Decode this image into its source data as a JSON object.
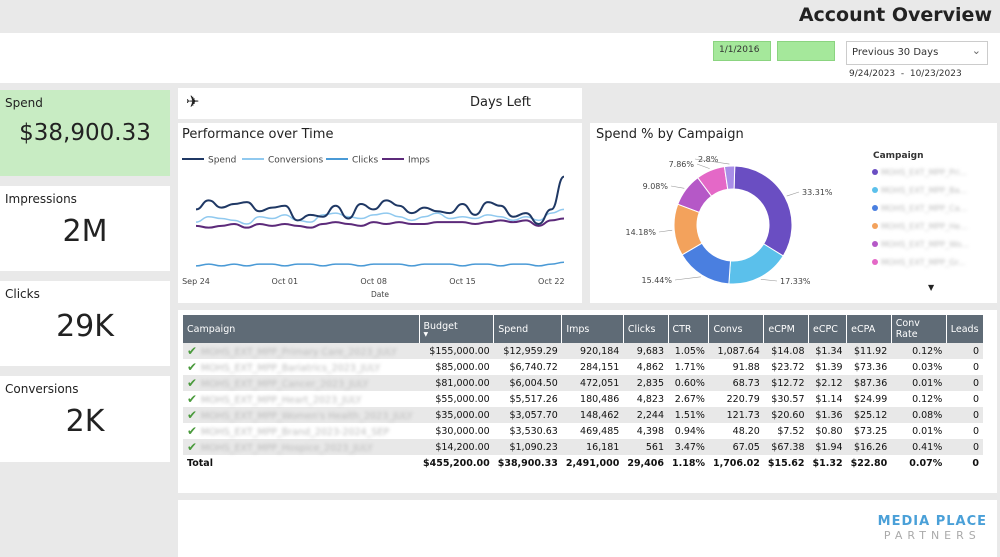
{
  "header": {
    "title": "Account Overview"
  },
  "filters": {
    "start_date": "1/1/2016",
    "end_date": "",
    "period": "Previous 30 Days",
    "range_text": "9/24/2023  -  10/23/2023"
  },
  "kpis": {
    "spend_label": "Spend",
    "spend_value": "$38,900.33",
    "impressions_label": "Impressions",
    "impressions_value": "2M",
    "clicks_label": "Clicks",
    "clicks_value": "29K",
    "conversions_label": "Conversions",
    "conversions_value": "2K"
  },
  "days_left": {
    "label": "Days Left",
    "icon": "airplane-icon"
  },
  "colors": {
    "spend": "#1f3864",
    "conversions": "#90c9ef",
    "clicks": "#4a9ad6",
    "imps": "#5c2a7a",
    "header_bg": "#5f6b76",
    "kpi_highlight": "#c8ecc3"
  },
  "chart_data": [
    {
      "type": "line",
      "title": "Performance over Time",
      "xlabel": "Date",
      "x_ticks": [
        "Sep 24",
        "Oct 01",
        "Oct 08",
        "Oct 15",
        "Oct 22"
      ],
      "series": [
        {
          "name": "Spend",
          "values": [
            1.6,
            2.1,
            1.7,
            1.9,
            2.0,
            1.5,
            1.7,
            1.8,
            1.0,
            1.3,
            1.2,
            1.8,
            1.1,
            1.9,
            1.6,
            2.1,
            1.8,
            1.4,
            1.7,
            1.5,
            1.4,
            1.9,
            1.3,
            2.0,
            1.8,
            1.2,
            1.4,
            0.8,
            1.6,
            3.4
          ]
        },
        {
          "name": "Conversions",
          "values": [
            0.9,
            1.2,
            1.1,
            1.0,
            0.8,
            1.2,
            1.1,
            1.3,
            1.0,
            0.9,
            1.3,
            1.4,
            1.2,
            1.1,
            1.3,
            1.4,
            1.2,
            1.0,
            1.2,
            1.4,
            1.1,
            1.2,
            1.1,
            1.3,
            1.2,
            1.0,
            1.2,
            1.0,
            1.4,
            1.6
          ]
        },
        {
          "name": "Clicks",
          "values": [
            -1.5,
            -1.4,
            -1.5,
            -1.4,
            -1.5,
            -1.4,
            -1.4,
            -1.5,
            -1.4,
            -1.4,
            -1.5,
            -1.4,
            -1.4,
            -1.5,
            -1.4,
            -1.4,
            -1.4,
            -1.5,
            -1.4,
            -1.4,
            -1.4,
            -1.5,
            -1.4,
            -1.4,
            -1.5,
            -1.4,
            -1.4,
            -1.5,
            -1.4,
            -1.3
          ]
        },
        {
          "name": "Imps",
          "values": [
            0.7,
            0.6,
            0.7,
            0.8,
            0.6,
            0.8,
            0.7,
            0.8,
            0.7,
            0.6,
            0.8,
            0.9,
            0.8,
            0.7,
            0.9,
            0.8,
            0.9,
            0.8,
            0.8,
            0.9,
            0.9,
            0.9,
            0.8,
            0.9,
            1.0,
            0.9,
            1.0,
            0.7,
            1.0,
            1.1
          ]
        }
      ]
    },
    {
      "type": "pie",
      "title": "Spend % by Campaign",
      "legend_title": "Campaign",
      "slices": [
        {
          "label": "33.31%",
          "value": 33.31,
          "color": "#6a4ec2"
        },
        {
          "label": "17.33%",
          "value": 17.33,
          "color": "#5bc0eb"
        },
        {
          "label": "15.44%",
          "value": 15.44,
          "color": "#4a7fe0"
        },
        {
          "label": "14.18%",
          "value": 14.18,
          "color": "#f3a25c"
        },
        {
          "label": "9.08%",
          "value": 9.08,
          "color": "#b558c7"
        },
        {
          "label": "7.86%",
          "value": 7.86,
          "color": "#e468c7"
        },
        {
          "label": "2.8%",
          "value": 2.8,
          "color": "#a98ee8"
        }
      ],
      "legend_entries": [
        "MOHS_EXT_MPP_Pri...",
        "MOHS_EXT_MPP_Ba...",
        "MOHS_EXT_MPP_Ca...",
        "MOHS_EXT_MPP_He...",
        "MOHS_EXT_MPP_Wo...",
        "MOHS_EXT_MPP_Gr..."
      ]
    }
  ],
  "table": {
    "columns": [
      "Campaign",
      "Budget",
      "Spend",
      "Imps",
      "Clicks",
      "CTR",
      "Convs",
      "eCPM",
      "eCPC",
      "eCPA",
      "Conv Rate",
      "Leads"
    ],
    "rows": [
      [
        "MOHS_EXT_MPP_Primary Care_2023_JULY",
        "$155,000.00",
        "$12,959.29",
        "920,184",
        "9,683",
        "1.05%",
        "1,087.64",
        "$14.08",
        "$1.34",
        "$11.92",
        "0.12%",
        "0"
      ],
      [
        "MOHS_EXT_MPP_Bariatrics_2023_JULY",
        "$85,000.00",
        "$6,740.72",
        "284,151",
        "4,862",
        "1.71%",
        "91.88",
        "$23.72",
        "$1.39",
        "$73.36",
        "0.03%",
        "0"
      ],
      [
        "MOHS_EXT_MPP_Cancer_2023_JULY",
        "$81,000.00",
        "$6,004.50",
        "472,051",
        "2,835",
        "0.60%",
        "68.73",
        "$12.72",
        "$2.12",
        "$87.36",
        "0.01%",
        "0"
      ],
      [
        "MOHS_EXT_MPP_Heart_2023_JULY",
        "$55,000.00",
        "$5,517.26",
        "180,486",
        "4,823",
        "2.67%",
        "220.79",
        "$30.57",
        "$1.14",
        "$24.99",
        "0.12%",
        "0"
      ],
      [
        "MOHS_EXT_MPP_Women's Health_2023_JULY",
        "$35,000.00",
        "$3,057.70",
        "148,462",
        "2,244",
        "1.51%",
        "121.73",
        "$20.60",
        "$1.36",
        "$25.12",
        "0.08%",
        "0"
      ],
      [
        "MOHS_EXT_MPP_Brand_2023-2024_SEP",
        "$30,000.00",
        "$3,530.63",
        "469,485",
        "4,398",
        "0.94%",
        "48.20",
        "$7.52",
        "$0.80",
        "$73.25",
        "0.01%",
        "0"
      ],
      [
        "MOHS_EXT_MPP_Hospice_2023_JULY",
        "$14,200.00",
        "$1,090.23",
        "16,181",
        "561",
        "3.47%",
        "67.05",
        "$67.38",
        "$1.94",
        "$16.26",
        "0.41%",
        "0"
      ]
    ],
    "total": [
      "Total",
      "$455,200.00",
      "$38,900.33",
      "2,491,000",
      "29,406",
      "1.18%",
      "1,706.02",
      "$15.62",
      "$1.32",
      "$22.80",
      "0.07%",
      "0"
    ]
  },
  "brand": {
    "line1": "MEDIA PLACE",
    "line2": "PARTNERS"
  }
}
